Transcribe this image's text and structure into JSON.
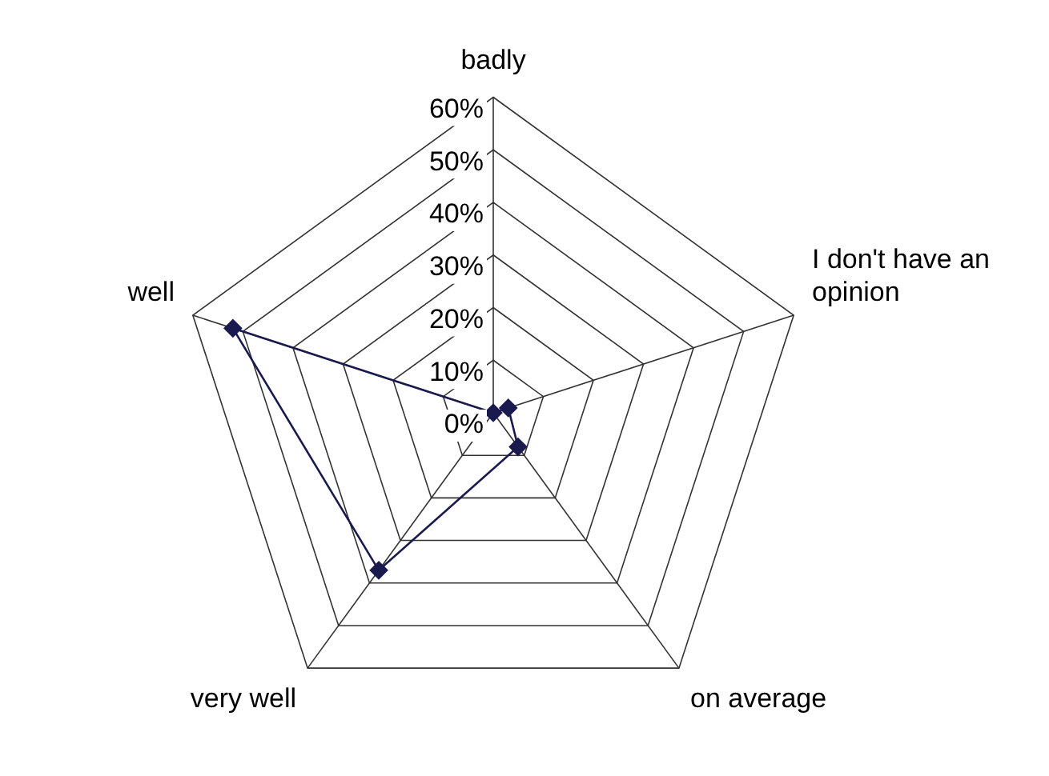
{
  "chart_data": {
    "type": "radar",
    "categories": [
      "badly",
      "I don't have an opinion",
      "on average",
      "very well",
      "well"
    ],
    "series": [
      {
        "color": "#1a1a4e",
        "values": [
          0,
          3,
          8,
          37,
          52
        ]
      }
    ],
    "ylim": [
      0,
      60
    ],
    "yticks": [
      {
        "value": 0,
        "label": "0%"
      },
      {
        "value": 10,
        "label": "10%"
      },
      {
        "value": 20,
        "label": "20%"
      },
      {
        "value": 30,
        "label": "30%"
      },
      {
        "value": 40,
        "label": "40%"
      },
      {
        "value": 50,
        "label": "50%"
      },
      {
        "value": 60,
        "label": "60%"
      }
    ],
    "grid": true,
    "legend": false,
    "marker": "diamond",
    "line_style": "solid"
  }
}
